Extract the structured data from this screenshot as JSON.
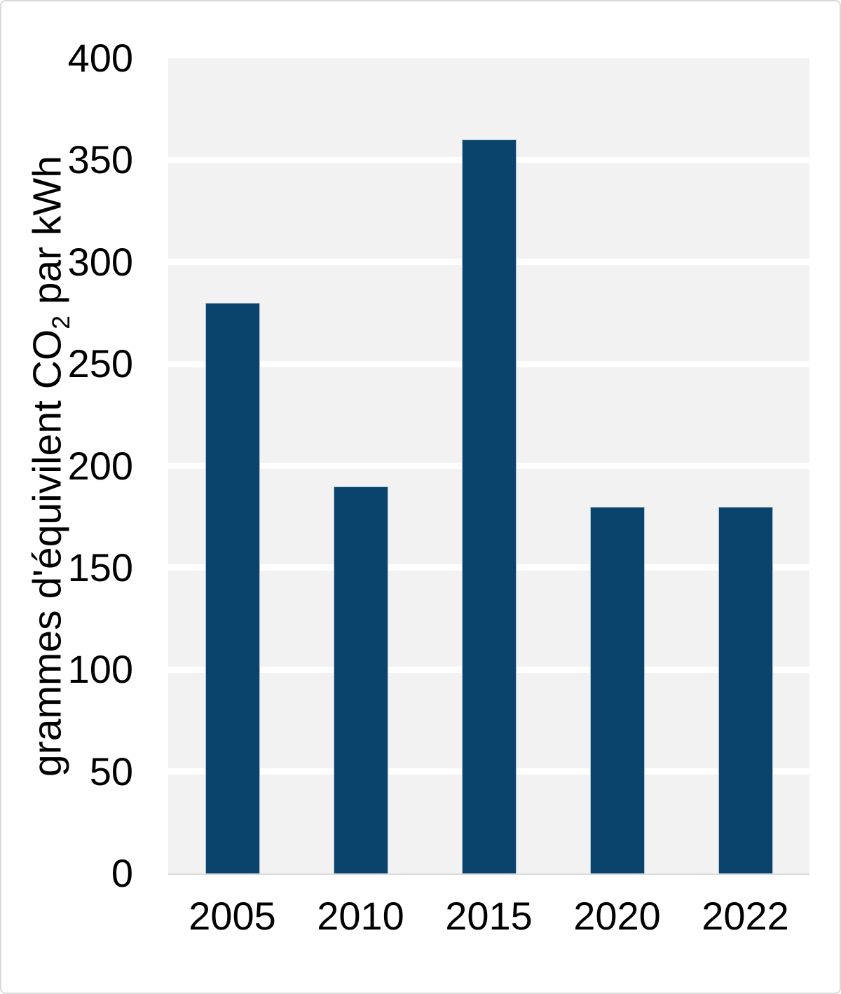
{
  "chart_data": {
    "type": "bar",
    "title": "",
    "xlabel": "",
    "ylabel": "grammes d'équivilent CO₂ par kWh",
    "ylabel_parts": {
      "pre": "grammes d'équivilent CO",
      "sub": "2",
      "post": " par kWh"
    },
    "categories": [
      "2005",
      "2010",
      "2015",
      "2020",
      "2022"
    ],
    "values": [
      280,
      190,
      360,
      180,
      180
    ],
    "ylim": [
      0,
      400
    ],
    "ytick_interval": 50,
    "yticks": [
      0,
      50,
      100,
      150,
      200,
      250,
      300,
      350,
      400
    ],
    "grid": true,
    "legend_position": "none",
    "colors": {
      "bar": "#0a436b",
      "bar_edge": "#cdddE8",
      "plot_background": "#f2f2f2",
      "gridline": "#ffffff",
      "text": "#000000",
      "card_border": "#d9d9d9",
      "axis_line": "#dcdcdc"
    }
  }
}
